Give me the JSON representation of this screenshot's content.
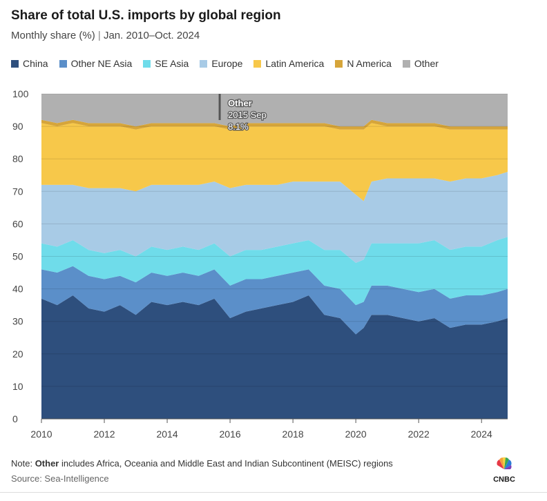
{
  "header": {
    "title": "Share of total U.S. imports by global region",
    "subtitle_main": "Monthly share (%)",
    "subtitle_sep": " | ",
    "subtitle_range": "Jan. 2010–Oct. 2024"
  },
  "legend": [
    {
      "label": "China",
      "color": "#2e4f7d"
    },
    {
      "label": "Other NE Asia",
      "color": "#5b8fc9"
    },
    {
      "label": "SE Asia",
      "color": "#6fdcea"
    },
    {
      "label": "Europe",
      "color": "#a8cbe6"
    },
    {
      "label": "Latin America",
      "color": "#f7c84a"
    },
    {
      "label": "N America",
      "color": "#d6a53a"
    },
    {
      "label": "Other",
      "color": "#b0b0b0"
    }
  ],
  "footer": {
    "note_prefix": "Note: ",
    "note_bold": "Other",
    "note_rest": " includes Africa, Oceania and Middle East and Indian Subcontinent (MEISC) regions",
    "source": "Source: Sea-Intelligence",
    "logo_text": "CNBC"
  },
  "chart_data": {
    "type": "area",
    "stacked": true,
    "percent_stacked": true,
    "x_start": "2010-01",
    "x_end": "2024-10",
    "xlim": [
      2010,
      2024.83
    ],
    "ylim": [
      0,
      100
    ],
    "y_ticks": [
      0,
      10,
      20,
      30,
      40,
      50,
      60,
      70,
      80,
      90,
      100
    ],
    "x_ticks": [
      2010,
      2012,
      2014,
      2016,
      2018,
      2020,
      2022,
      2024
    ],
    "grid": true,
    "legend_position": "top",
    "annotation": {
      "series": "Other",
      "date": "2015 Sep",
      "value": "8.1%",
      "x": 2015.67
    },
    "x": [
      2010,
      2010.5,
      2011,
      2011.5,
      2012,
      2012.5,
      2013,
      2013.5,
      2014,
      2014.5,
      2015,
      2015.5,
      2016,
      2016.5,
      2017,
      2017.5,
      2018,
      2018.5,
      2019,
      2019.5,
      2020,
      2020.25,
      2020.5,
      2021,
      2021.5,
      2022,
      2022.5,
      2023,
      2023.5,
      2024,
      2024.5,
      2024.83
    ],
    "series": [
      {
        "name": "China",
        "color": "#2e4f7d",
        "values": [
          37,
          35,
          38,
          34,
          33,
          35,
          32,
          36,
          35,
          36,
          35,
          37,
          31,
          33,
          34,
          35,
          36,
          38,
          32,
          31,
          26,
          28,
          32,
          32,
          31,
          30,
          31,
          28,
          29,
          29,
          30,
          31
        ]
      },
      {
        "name": "Other NE Asia",
        "color": "#5b8fc9",
        "values": [
          9,
          10,
          9,
          10,
          10,
          9,
          10,
          9,
          9,
          9,
          9,
          9,
          10,
          10,
          9,
          9,
          9,
          8,
          9,
          9,
          9,
          8,
          9,
          9,
          9,
          9,
          9,
          9,
          9,
          9,
          9,
          9
        ]
      },
      {
        "name": "SE Asia",
        "color": "#6fdcea",
        "values": [
          8,
          8,
          8,
          8,
          8,
          8,
          8,
          8,
          8,
          8,
          8,
          8,
          9,
          9,
          9,
          9,
          9,
          9,
          11,
          12,
          13,
          13,
          13,
          13,
          14,
          15,
          15,
          15,
          15,
          15,
          16,
          16
        ]
      },
      {
        "name": "Europe",
        "color": "#a8cbe6",
        "values": [
          18,
          19,
          17,
          19,
          20,
          19,
          20,
          19,
          20,
          19,
          20,
          19,
          21,
          20,
          20,
          19,
          19,
          18,
          21,
          21,
          21,
          18,
          19,
          20,
          20,
          20,
          19,
          21,
          21,
          21,
          20,
          20
        ]
      },
      {
        "name": "Latin America",
        "color": "#f7c84a",
        "values": [
          19,
          18,
          19,
          19,
          19,
          19,
          19,
          18,
          18,
          18,
          18,
          17,
          18,
          18,
          18,
          18,
          17,
          17,
          17,
          16,
          20,
          22,
          18,
          16,
          16,
          16,
          16,
          16,
          15,
          15,
          14,
          13
        ]
      },
      {
        "name": "N America",
        "color": "#d6a53a",
        "values": [
          1,
          1,
          1,
          1,
          1,
          1,
          1,
          1,
          1,
          1,
          1,
          1,
          1,
          1,
          1,
          1,
          1,
          1,
          1,
          1,
          1,
          1,
          1,
          1,
          1,
          1,
          1,
          1,
          1,
          1,
          1,
          1
        ]
      },
      {
        "name": "Other",
        "color": "#b0b0b0",
        "values": [
          8,
          9,
          8,
          9,
          9,
          9,
          10,
          9,
          9,
          9,
          9,
          9,
          10,
          9,
          9,
          9,
          9,
          9,
          9,
          10,
          10,
          10,
          8,
          9,
          9,
          9,
          9,
          10,
          10,
          10,
          10,
          10
        ]
      }
    ]
  }
}
